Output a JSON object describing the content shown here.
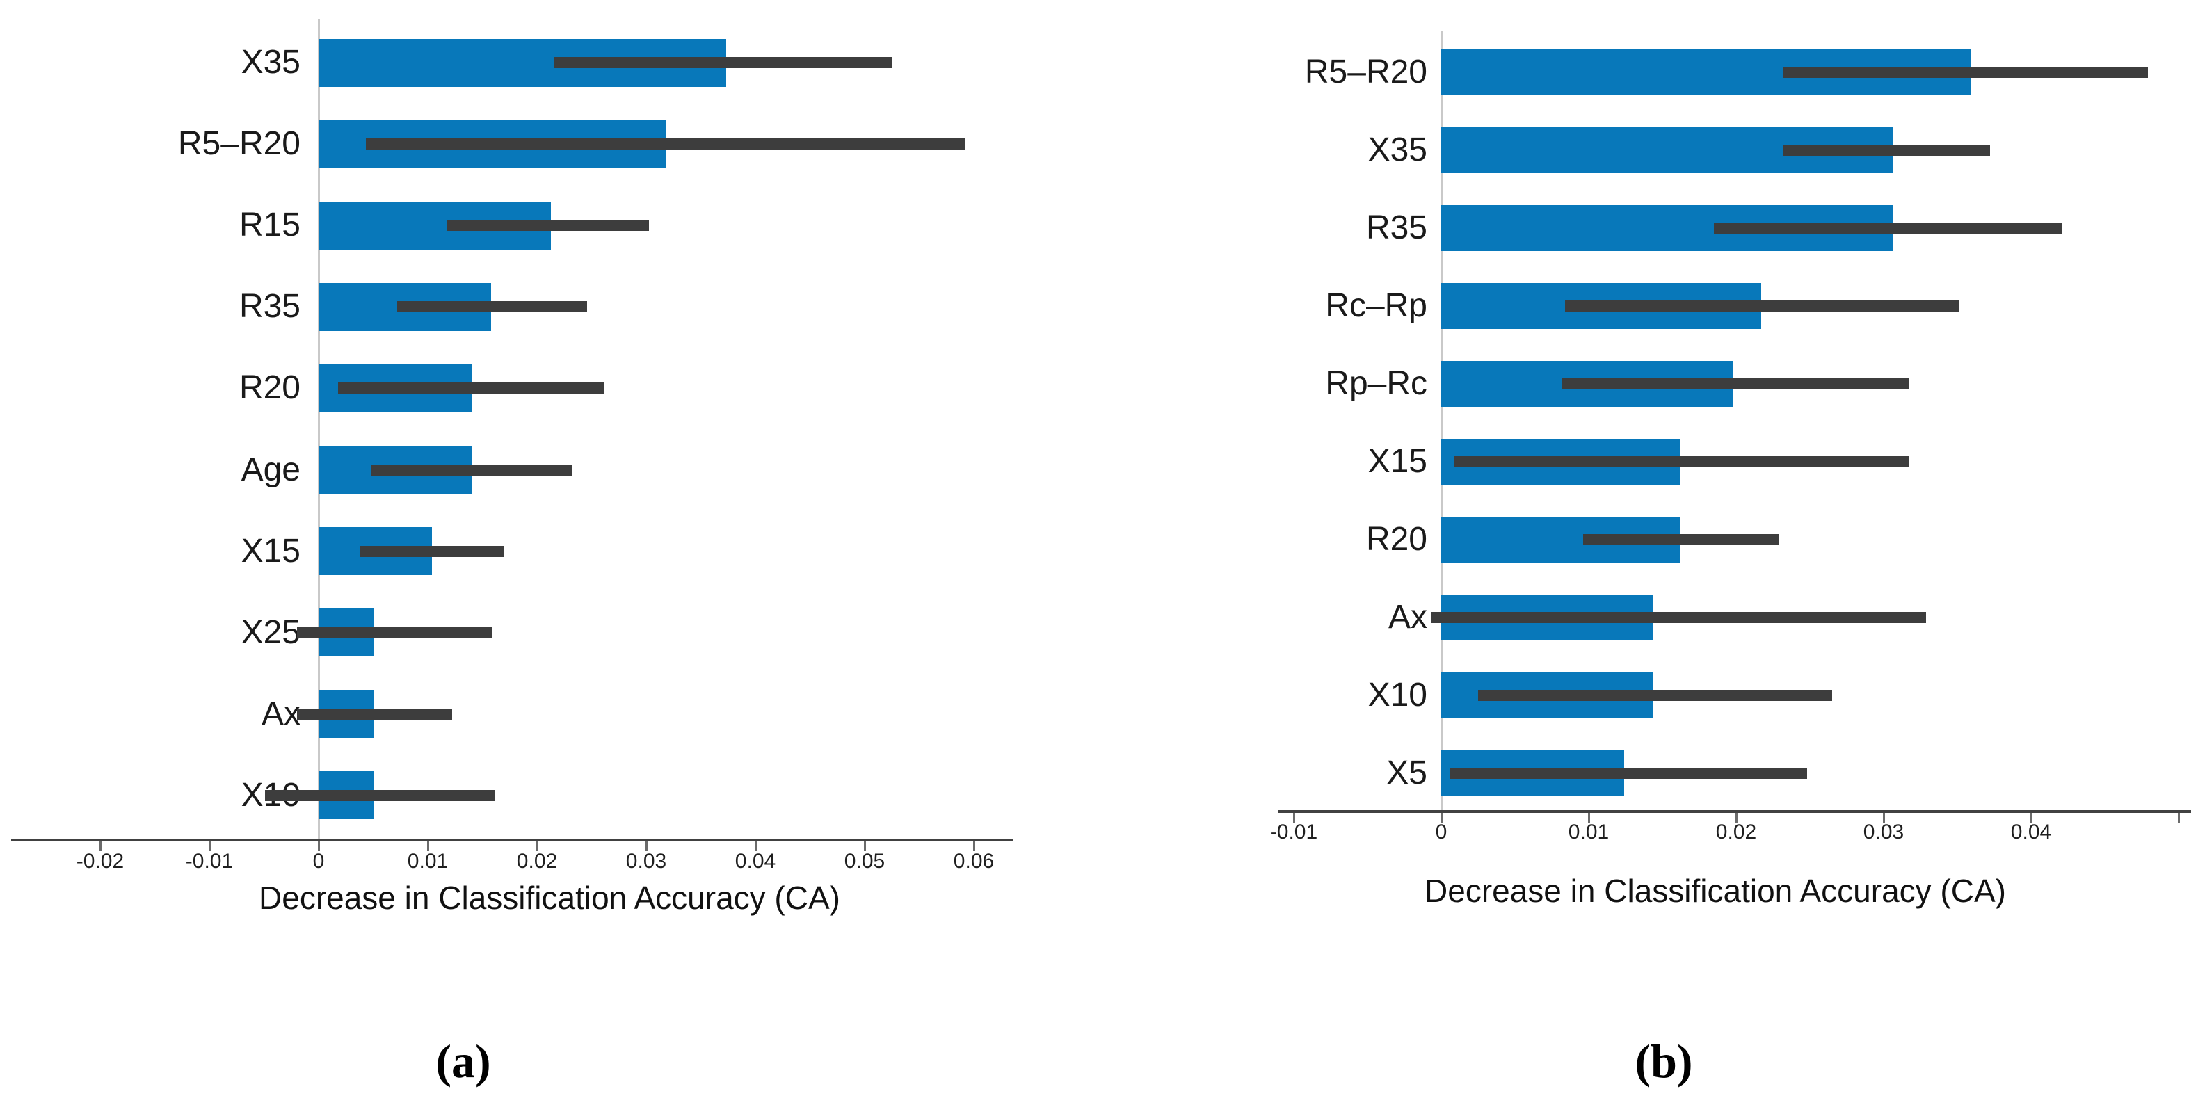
{
  "colors": {
    "bar": "#0878ba",
    "error_bar": "#3d3d3d",
    "axis": "#414141",
    "zero_gridline": "#c9c9c9",
    "text": "#1a1a1a"
  },
  "chart_data": [
    {
      "id": "a",
      "type": "bar",
      "orientation": "horizontal",
      "caption": "(a)",
      "xlabel": "Decrease in Classification Accuracy (CA)",
      "xlim": [
        -0.028,
        0.0636
      ],
      "grid": false,
      "categories": [
        "X35",
        "R5–R20",
        "R15",
        "R35",
        "R20",
        "Age",
        "X15",
        "X25",
        "Ax",
        "X10"
      ],
      "values": [
        0.0373,
        0.0318,
        0.0213,
        0.0158,
        0.014,
        0.014,
        0.0104,
        0.0051,
        0.0051,
        0.0051
      ],
      "error_low": [
        0.0215,
        0.0043,
        0.0118,
        0.0072,
        0.0018,
        0.0048,
        0.0038,
        -0.002,
        -0.002,
        -0.0049
      ],
      "error_high": [
        0.0525,
        0.0592,
        0.0303,
        0.0246,
        0.0261,
        0.0233,
        0.017,
        0.0159,
        0.0122,
        0.0161
      ],
      "xticks": [
        {
          "v": -0.02,
          "label": "-0.02"
        },
        {
          "v": -0.01,
          "label": "-0.01"
        },
        {
          "v": 0,
          "label": "0"
        },
        {
          "v": 0.01,
          "label": "0.01"
        },
        {
          "v": 0.02,
          "label": "0.02"
        },
        {
          "v": 0.03,
          "label": "0.03"
        },
        {
          "v": 0.04,
          "label": "0.04"
        },
        {
          "v": 0.05,
          "label": "0.05"
        },
        {
          "v": 0.06,
          "label": "0.06"
        }
      ]
    },
    {
      "id": "b",
      "type": "bar",
      "orientation": "horizontal",
      "caption": "(b)",
      "xlabel": "Decrease in Classification Accuracy (CA)",
      "xlim": [
        -0.011,
        0.0509
      ],
      "grid": false,
      "categories": [
        "R5–R20",
        "X35",
        "R35",
        "Rc–Rp",
        "Rp–Rc",
        "X15",
        "R20",
        "Ax",
        "X10",
        "X5"
      ],
      "values": [
        0.0359,
        0.0306,
        0.0306,
        0.0217,
        0.0198,
        0.0162,
        0.0162,
        0.0144,
        0.0144,
        0.0124
      ],
      "error_low": [
        0.0232,
        0.0232,
        0.0185,
        0.0084,
        0.0082,
        0.0009,
        0.0096,
        -0.0007,
        0.0025,
        0.0006
      ],
      "error_high": [
        0.0479,
        0.0372,
        0.0421,
        0.0351,
        0.0317,
        0.0317,
        0.0229,
        0.0329,
        0.0265,
        0.0248
      ],
      "xticks": [
        {
          "v": -0.01,
          "label": "-0.01"
        },
        {
          "v": 0,
          "label": "0"
        },
        {
          "v": 0.01,
          "label": "0.01"
        },
        {
          "v": 0.02,
          "label": "0.02"
        },
        {
          "v": 0.03,
          "label": "0.03"
        },
        {
          "v": 0.04,
          "label": "0.04"
        },
        {
          "v": 0.05,
          "label": ""
        }
      ]
    }
  ]
}
